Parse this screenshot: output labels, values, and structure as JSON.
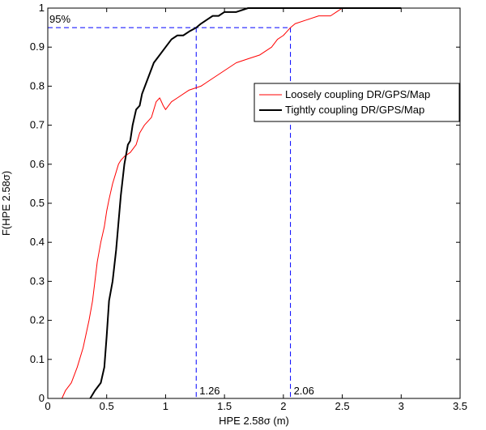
{
  "chart_data": {
    "type": "line",
    "title": "",
    "xlabel": "HPE 2.58σ (m)",
    "ylabel": "F(HPE 2.58σ)",
    "xlim": [
      0,
      3.5
    ],
    "ylim": [
      0,
      1
    ],
    "xticks": [
      0,
      0.5,
      1,
      1.5,
      2,
      2.5,
      3,
      3.5
    ],
    "xtick_labels": [
      "0",
      "0.5",
      "1",
      "1.5",
      "2",
      "2.5",
      "3",
      "3.5"
    ],
    "yticks": [
      0,
      0.1,
      0.2,
      0.3,
      0.4,
      0.5,
      0.6,
      0.7,
      0.8,
      0.9,
      1
    ],
    "ytick_labels": [
      "0",
      "0.1",
      "0.2",
      "0.3",
      "0.4",
      "0.5",
      "0.6",
      "0.7",
      "0.8",
      "0.9",
      "1"
    ],
    "grid": false,
    "legend_position": "upper-right",
    "series": [
      {
        "name": "Loosely coupling DR/GPS/Map",
        "color": "#ff0000",
        "x": [
          0.12,
          0.15,
          0.2,
          0.25,
          0.3,
          0.35,
          0.38,
          0.4,
          0.42,
          0.45,
          0.48,
          0.5,
          0.52,
          0.55,
          0.58,
          0.6,
          0.62,
          0.65,
          0.7,
          0.75,
          0.78,
          0.8,
          0.82,
          0.85,
          0.88,
          0.9,
          0.92,
          0.95,
          0.98,
          1.0,
          1.05,
          1.1,
          1.2,
          1.3,
          1.4,
          1.5,
          1.6,
          1.7,
          1.8,
          1.9,
          1.95,
          2.0,
          2.03,
          2.06,
          2.1,
          2.2,
          2.3,
          2.4,
          2.45,
          2.5,
          2.6,
          2.8,
          3.0
        ],
        "y": [
          0.0,
          0.02,
          0.04,
          0.08,
          0.13,
          0.2,
          0.25,
          0.3,
          0.35,
          0.4,
          0.44,
          0.48,
          0.51,
          0.55,
          0.58,
          0.6,
          0.61,
          0.62,
          0.63,
          0.65,
          0.68,
          0.69,
          0.7,
          0.71,
          0.72,
          0.74,
          0.76,
          0.77,
          0.75,
          0.74,
          0.76,
          0.77,
          0.79,
          0.8,
          0.82,
          0.84,
          0.86,
          0.87,
          0.88,
          0.9,
          0.92,
          0.93,
          0.94,
          0.95,
          0.96,
          0.97,
          0.98,
          0.98,
          0.99,
          1.0,
          1.0,
          1.0,
          1.0
        ]
      },
      {
        "name": "Tightly coupling DR/GPS/Map",
        "color": "#000000",
        "x": [
          0.36,
          0.4,
          0.45,
          0.48,
          0.5,
          0.52,
          0.55,
          0.58,
          0.6,
          0.62,
          0.65,
          0.68,
          0.7,
          0.72,
          0.75,
          0.78,
          0.8,
          0.85,
          0.9,
          0.95,
          1.0,
          1.05,
          1.1,
          1.15,
          1.2,
          1.26,
          1.3,
          1.35,
          1.4,
          1.45,
          1.5,
          1.6,
          1.7,
          1.8,
          1.9,
          2.0,
          2.2,
          2.5,
          3.0
        ],
        "y": [
          0.0,
          0.02,
          0.04,
          0.08,
          0.16,
          0.25,
          0.3,
          0.38,
          0.45,
          0.52,
          0.6,
          0.65,
          0.66,
          0.7,
          0.74,
          0.75,
          0.78,
          0.82,
          0.86,
          0.88,
          0.9,
          0.92,
          0.93,
          0.93,
          0.94,
          0.95,
          0.96,
          0.97,
          0.98,
          0.98,
          0.99,
          0.99,
          1.0,
          1.0,
          1.0,
          1.0,
          1.0,
          1.0,
          1.0
        ]
      }
    ],
    "reference_lines": {
      "color": "#0000ff",
      "level_label": "95%",
      "level": 0.95,
      "markers": [
        {
          "x": 1.26,
          "label": "1.26"
        },
        {
          "x": 2.06,
          "label": "2.06"
        }
      ]
    }
  }
}
